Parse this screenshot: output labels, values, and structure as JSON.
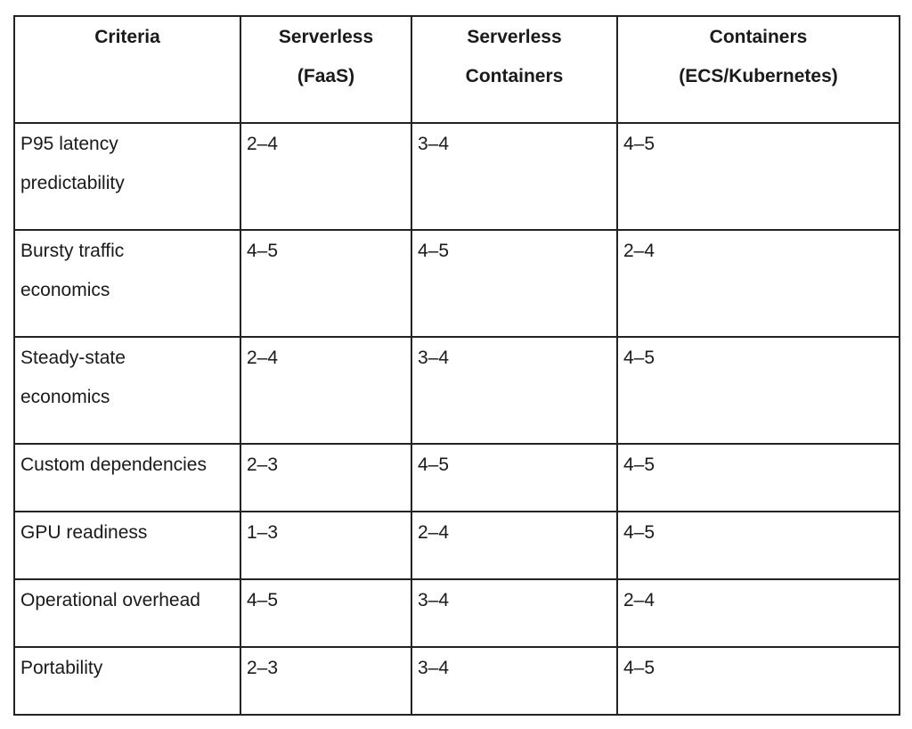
{
  "table": {
    "headers": [
      [
        "Criteria"
      ],
      [
        "Serverless",
        "(FaaS)"
      ],
      [
        "Serverless",
        "Containers"
      ],
      [
        "Containers",
        "(ECS/Kubernetes)"
      ]
    ],
    "rows": [
      {
        "criteria": [
          "P95 latency",
          "predictability"
        ],
        "faas": "2–4",
        "serverless_containers": "3–4",
        "containers": "4–5"
      },
      {
        "criteria": [
          "Bursty traffic",
          "economics"
        ],
        "faas": "4–5",
        "serverless_containers": "4–5",
        "containers": "2–4"
      },
      {
        "criteria": [
          "Steady-state",
          "economics"
        ],
        "faas": "2–4",
        "serverless_containers": "3–4",
        "containers": "4–5"
      },
      {
        "criteria": [
          "Custom dependencies"
        ],
        "faas": "2–3",
        "serverless_containers": "4–5",
        "containers": "4–5"
      },
      {
        "criteria": [
          "GPU readiness"
        ],
        "faas": "1–3",
        "serverless_containers": "2–4",
        "containers": "4–5"
      },
      {
        "criteria": [
          "Operational overhead"
        ],
        "faas": "4–5",
        "serverless_containers": "3–4",
        "containers": "2–4"
      },
      {
        "criteria": [
          "Portability"
        ],
        "faas": "2–3",
        "serverless_containers": "3–4",
        "containers": "4–5"
      }
    ]
  }
}
